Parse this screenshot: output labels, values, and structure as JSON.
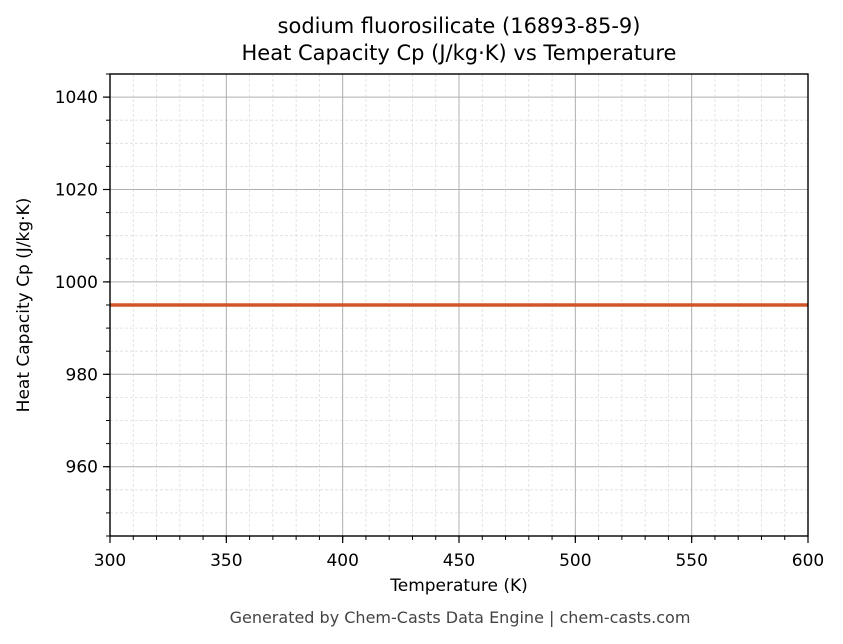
{
  "chart": {
    "title_line1": "sodium fluorosilicate (16893-85-9)",
    "title_line2": "Heat Capacity Cp (J/kg·K) vs Temperature",
    "xlabel": "Temperature (K)",
    "ylabel": "Heat Capacity Cp (J/kg·K)",
    "footer": "Generated by Chem-Casts Data Engine | chem-casts.com",
    "line_color": "#d0562a"
  },
  "chart_data": {
    "type": "line",
    "title": "sodium fluorosilicate (16893-85-9) Heat Capacity Cp (J/kg·K) vs Temperature",
    "xlabel": "Temperature (K)",
    "ylabel": "Heat Capacity Cp (J/kg·K)",
    "x": [
      300,
      350,
      400,
      450,
      500,
      550,
      600
    ],
    "series": [
      {
        "name": "Cp",
        "values": [
          995,
          995,
          995,
          995,
          995,
          995,
          995
        ]
      }
    ],
    "xlim": [
      300,
      600
    ],
    "ylim": [
      945,
      1045
    ],
    "xticks": [
      300,
      350,
      400,
      450,
      500,
      550,
      600
    ],
    "yticks": [
      960,
      980,
      1000,
      1020,
      1040
    ],
    "grid": true,
    "minor_grid": true,
    "legend": null
  }
}
